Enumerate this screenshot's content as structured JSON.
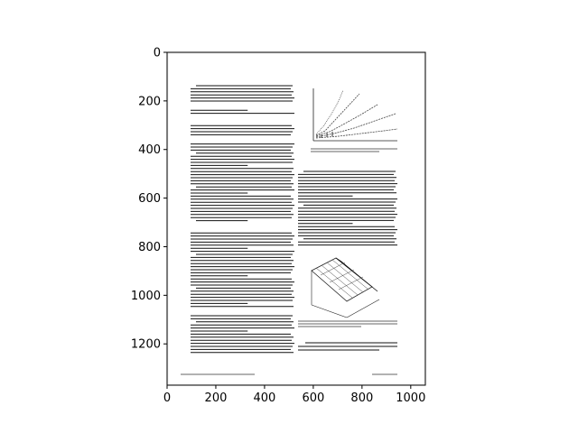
{
  "chart_data": {
    "type": "image",
    "title": "",
    "xlabel": "",
    "ylabel": "",
    "xlim": [
      0,
      1060
    ],
    "ylim": [
      1370,
      0
    ],
    "xticks": [
      0,
      200,
      400,
      600,
      800,
      1000
    ],
    "yticks": [
      0,
      200,
      400,
      600,
      800,
      1000,
      1200
    ],
    "y_inverted": true,
    "grid": false,
    "image_content": "scanned journal page: two-column body text with a line-plot figure at top right and a 3D surface plot at lower right"
  }
}
